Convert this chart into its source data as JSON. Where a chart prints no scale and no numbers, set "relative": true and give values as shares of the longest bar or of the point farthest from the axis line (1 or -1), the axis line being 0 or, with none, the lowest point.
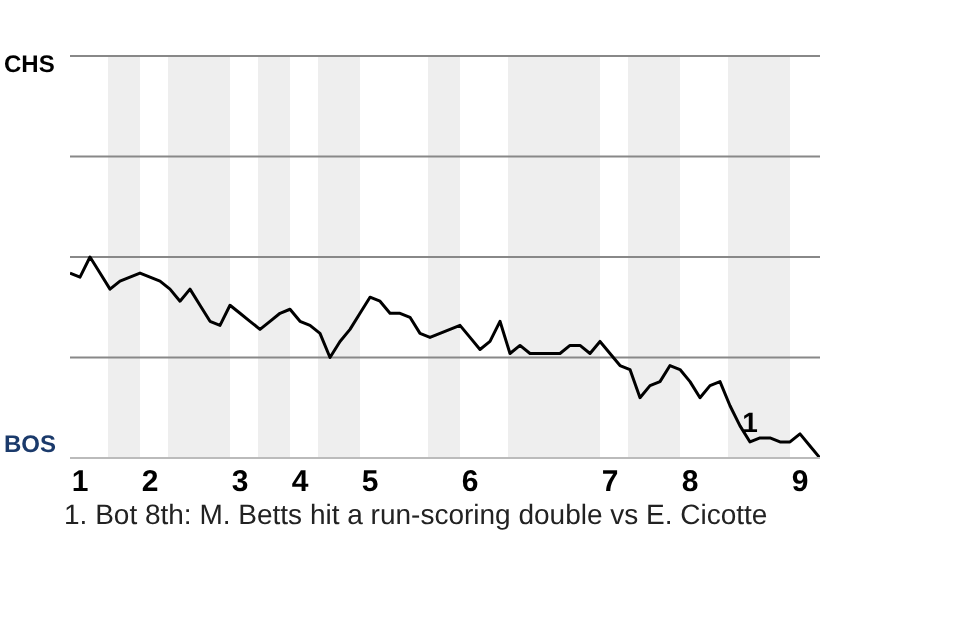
{
  "chart_data": {
    "type": "line",
    "relative": true,
    "categories": [
      null,
      "1",
      null,
      null,
      null,
      null,
      null,
      null,
      "2",
      null,
      null,
      null,
      null,
      null,
      null,
      null,
      null,
      "3",
      null,
      null,
      null,
      null,
      null,
      "4",
      null,
      null,
      null,
      null,
      null,
      null,
      "5",
      null,
      null,
      null,
      null,
      null,
      null,
      null,
      null,
      null,
      "6",
      null,
      null,
      null,
      null,
      null,
      null,
      null,
      null,
      null,
      null,
      null,
      null,
      null,
      "7",
      null,
      null,
      null,
      null,
      null,
      null,
      null,
      "8",
      null,
      null,
      null,
      null,
      null,
      null,
      null,
      null,
      null,
      null,
      "9",
      null,
      null
    ],
    "series": [
      {
        "color": "#000000",
        "values": [
          -0.08,
          -0.1,
          0,
          -0.08,
          -0.16,
          -0.12,
          -0.1,
          -0.08,
          -0.1,
          -0.12,
          -0.16,
          -0.22,
          -0.16,
          -0.24,
          -0.32,
          -0.34,
          -0.24,
          -0.28,
          -0.32,
          -0.36,
          -0.32,
          -0.28,
          -0.26,
          -0.32,
          -0.34,
          -0.38,
          -0.5,
          -0.42,
          -0.36,
          -0.28,
          -0.2,
          -0.22,
          -0.28,
          -0.28,
          -0.3,
          -0.38,
          -0.4,
          -0.38,
          -0.36,
          -0.34,
          -0.4,
          -0.46,
          -0.42,
          -0.32,
          -0.48,
          -0.44,
          -0.48,
          -0.48,
          -0.48,
          -0.48,
          -0.44,
          -0.44,
          -0.48,
          -0.42,
          -0.48,
          -0.54,
          -0.56,
          -0.7,
          -0.64,
          -0.62,
          -0.54,
          -0.56,
          -0.62,
          -0.7,
          -0.64,
          -0.62,
          -0.74,
          -0.84,
          -0.92,
          -0.9,
          -0.9,
          -0.92,
          -0.92,
          -0.88,
          -0.94,
          -1
        ]
      }
    ],
    "annotations": [
      "CHS",
      "BOS",
      {
        "text": "1",
        "y": -0.92
      },
      "1. Bot 8th: M. Betts hit a run-scoring double vs E. Cicotte"
    ],
    "ref_lines": [
      {
        "axis": "y",
        "value": 1,
        "color": "#888888"
      },
      {
        "axis": "y",
        "value": 0.5,
        "color": "#888888"
      },
      {
        "axis": "y",
        "value": 0,
        "color": "#888888"
      },
      {
        "axis": "y",
        "value": -0.5,
        "color": "#888888"
      }
    ],
    "legend": false,
    "marker": "none",
    "line_style": "solid"
  }
}
